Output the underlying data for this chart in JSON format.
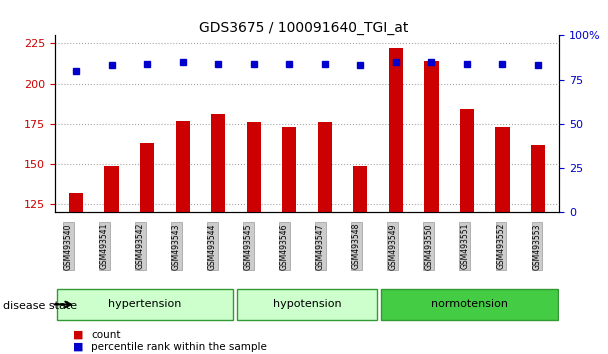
{
  "title": "GDS3675 / 100091640_TGI_at",
  "samples": [
    "GSM493540",
    "GSM493541",
    "GSM493542",
    "GSM493543",
    "GSM493544",
    "GSM493545",
    "GSM493546",
    "GSM493547",
    "GSM493548",
    "GSM493549",
    "GSM493550",
    "GSM493551",
    "GSM493552",
    "GSM493553"
  ],
  "count_values": [
    132,
    149,
    163,
    177,
    181,
    176,
    173,
    176,
    149,
    222,
    214,
    184,
    173,
    162
  ],
  "percentile_values": [
    80,
    83,
    84,
    85,
    84,
    84,
    84,
    84,
    83,
    85,
    85,
    84,
    84,
    83
  ],
  "ylim_left": [
    120,
    230
  ],
  "ylim_right": [
    0,
    100
  ],
  "yticks_left": [
    125,
    150,
    175,
    200,
    225
  ],
  "yticks_right": [
    0,
    25,
    50,
    75,
    100
  ],
  "bar_color": "#cc0000",
  "dot_color": "#0000cc",
  "groups": [
    {
      "label": "hypertension",
      "start": 0,
      "end": 5,
      "color": "#ccffcc"
    },
    {
      "label": "hypotension",
      "start": 5,
      "end": 9,
      "color": "#ccffcc"
    },
    {
      "label": "normotension",
      "start": 9,
      "end": 14,
      "color": "#44cc44"
    }
  ],
  "group_border_colors": [
    "#88cc88",
    "#88cc88",
    "#228822"
  ],
  "disease_state_label": "disease state",
  "legend_count_label": "count",
  "legend_percentile_label": "percentile rank within the sample",
  "background_color": "#ffffff",
  "plot_bg_color": "#ffffff",
  "tick_label_bg": "#cccccc"
}
